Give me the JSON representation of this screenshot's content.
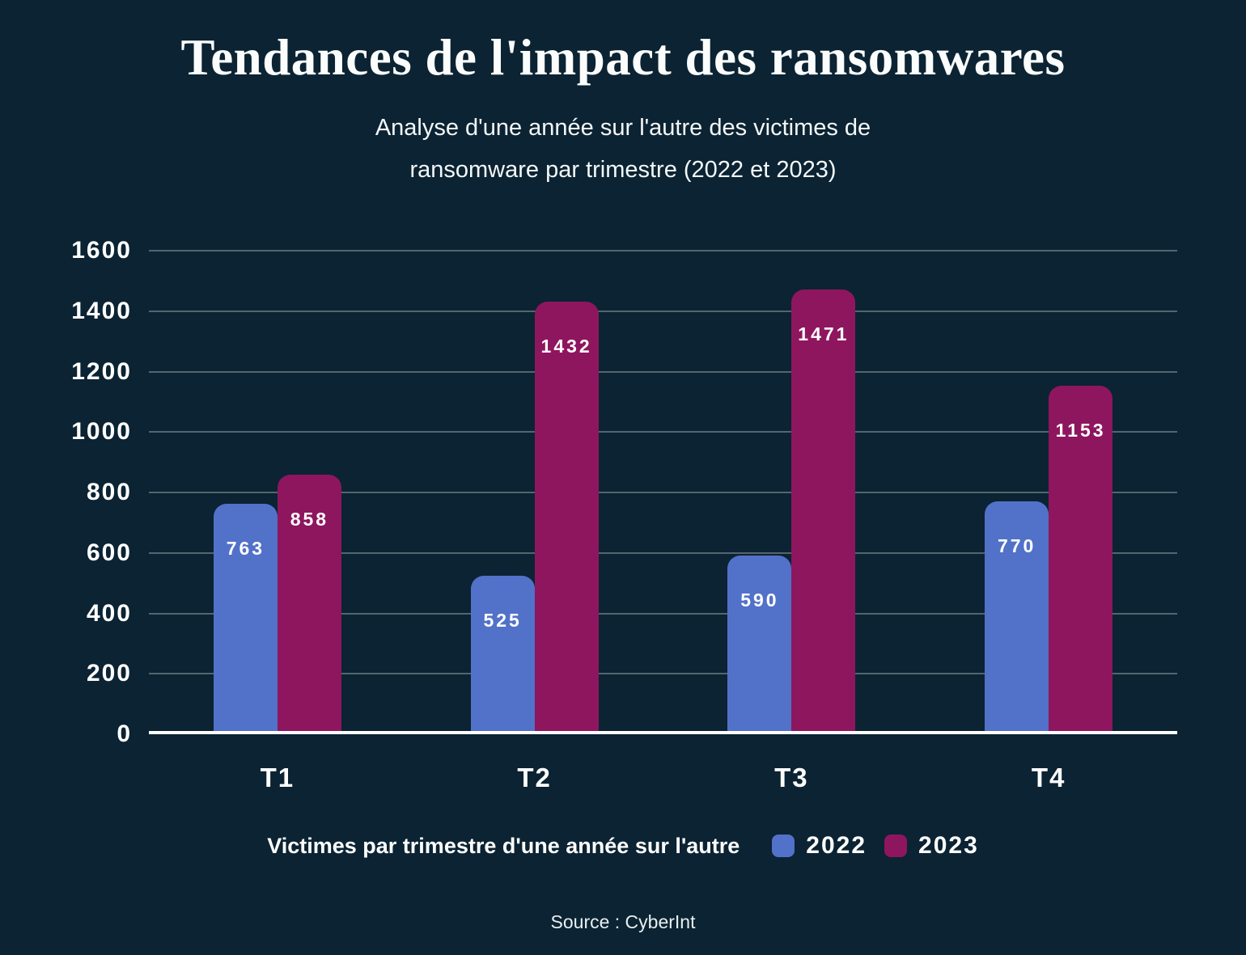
{
  "page": {
    "title": "Tendances de l'impact des ransomwares",
    "subtitle_line1": "Analyse d'une année sur l'autre des victimes de",
    "subtitle_line2": "ransomware par trimestre (2022 et 2023)",
    "source": "Source : CyberInt"
  },
  "colors": {
    "background": "#0B2332",
    "series_2022": "#5271C9",
    "series_2023": "#8E165E",
    "gridline": "rgba(255,255,255,0.30)",
    "axis_line": "#FFFFFF",
    "text": "#FFFFFF"
  },
  "legend": {
    "label": "Victimes par trimestre d'une année sur l'autre",
    "items": [
      {
        "name": "2022",
        "color": "#5271C9"
      },
      {
        "name": "2023",
        "color": "#8E165E"
      }
    ]
  },
  "chart_data": {
    "type": "bar",
    "title": "Tendances de l'impact des ransomwares",
    "subtitle": "Analyse d'une année sur l'autre des victimes de ransomware par trimestre (2022 et 2023)",
    "categories": [
      "T1",
      "T2",
      "T3",
      "T4"
    ],
    "series": [
      {
        "name": "2022",
        "color": "#5271C9",
        "values": [
          763,
          525,
          590,
          770
        ]
      },
      {
        "name": "2023",
        "color": "#8E165E",
        "values": [
          858,
          1432,
          1471,
          1153
        ]
      }
    ],
    "xlabel": "",
    "ylabel": "",
    "ylim": [
      0,
      1600
    ],
    "yticks": [
      0,
      200,
      400,
      600,
      800,
      1000,
      1200,
      1400,
      1600
    ],
    "grid": true,
    "legend_position": "bottom",
    "source": "Source : CyberInt"
  }
}
